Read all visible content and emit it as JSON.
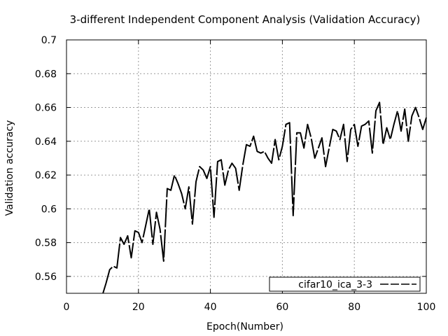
{
  "chart_data": {
    "type": "line",
    "title": "3-different Independent Component Analysis (Validation Accuracy)",
    "xlabel": "Epoch(Number)",
    "ylabel": "Validation accuracy",
    "xlim": [
      0,
      100
    ],
    "ylim": [
      0.55,
      0.7
    ],
    "xticks": [
      0,
      20,
      40,
      60,
      80,
      100
    ],
    "yticks": [
      0.56,
      0.58,
      0.6,
      0.62,
      0.64,
      0.66,
      0.68,
      0.7
    ],
    "xtick_labels": [
      "0",
      "20",
      "40",
      "60",
      "80",
      "100"
    ],
    "ytick_labels": [
      "0.56",
      "0.58",
      "0.6",
      "0.62",
      "0.64",
      "0.66",
      "0.68",
      "0.7"
    ],
    "grid": true,
    "legend_position": "bottom-right",
    "series": [
      {
        "name": "cifar10_ica_3-3",
        "color": "#000000",
        "line_style": "long-dash",
        "x": [
          10,
          11,
          12,
          13,
          14,
          15,
          16,
          17,
          18,
          19,
          20,
          21,
          22,
          23,
          24,
          25,
          26,
          27,
          28,
          29,
          30,
          31,
          32,
          33,
          34,
          35,
          36,
          37,
          38,
          39,
          40,
          41,
          42,
          43,
          44,
          45,
          46,
          47,
          48,
          49,
          50,
          51,
          52,
          53,
          54,
          55,
          56,
          57,
          58,
          59,
          60,
          61,
          62,
          63,
          64,
          65,
          66,
          67,
          68,
          69,
          70,
          71,
          72,
          73,
          74,
          75,
          76,
          77,
          78,
          79,
          80,
          81,
          82,
          83,
          84,
          85,
          86,
          87,
          88,
          89,
          90,
          91,
          92,
          93,
          94,
          95,
          96,
          97,
          98,
          99,
          100
        ],
        "y": [
          0.549,
          0.556,
          0.564,
          0.566,
          0.565,
          0.583,
          0.579,
          0.584,
          0.571,
          0.587,
          0.586,
          0.58,
          0.59,
          0.6,
          0.579,
          0.598,
          0.588,
          0.569,
          0.612,
          0.611,
          0.62,
          0.615,
          0.609,
          0.6,
          0.613,
          0.591,
          0.616,
          0.625,
          0.623,
          0.618,
          0.625,
          0.595,
          0.628,
          0.629,
          0.614,
          0.623,
          0.627,
          0.624,
          0.611,
          0.626,
          0.638,
          0.637,
          0.643,
          0.634,
          0.633,
          0.634,
          0.63,
          0.627,
          0.641,
          0.629,
          0.637,
          0.65,
          0.651,
          0.596,
          0.645,
          0.645,
          0.636,
          0.65,
          0.642,
          0.63,
          0.636,
          0.642,
          0.625,
          0.636,
          0.647,
          0.646,
          0.641,
          0.65,
          0.628,
          0.647,
          0.65,
          0.637,
          0.649,
          0.65,
          0.652,
          0.633,
          0.658,
          0.663,
          0.638,
          0.648,
          0.641,
          0.65,
          0.658,
          0.646,
          0.659,
          0.64,
          0.655,
          0.66,
          0.654,
          0.647,
          0.654
        ]
      }
    ]
  }
}
